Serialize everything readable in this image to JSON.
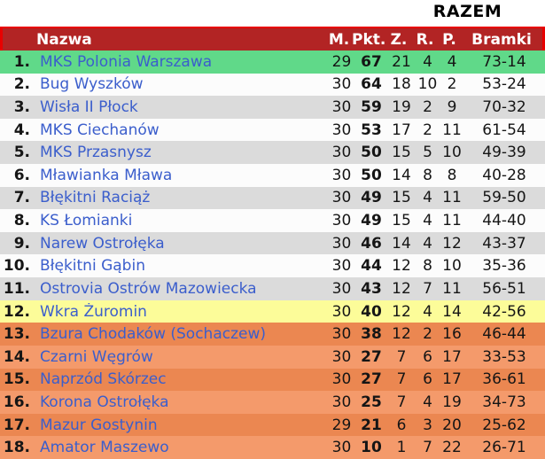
{
  "title": {
    "razem_label": "RAZEM"
  },
  "header": {
    "nazwa": "Nazwa",
    "m": "M.",
    "pkt": "Pkt.",
    "z": "Z.",
    "r": "R.",
    "p": "P.",
    "bramki": "Bramki"
  },
  "colors": {
    "header_bg": "#B22424",
    "header_accent": "#E80000",
    "header_text": "#FFFFFF",
    "team_link": "#3B5ECC",
    "number_text": "#151515",
    "zones": {
      "promotion_green": "#60D989",
      "plain_white": "#FCFCFC",
      "plain_gray": "#DBDBDB",
      "playoff_yellow": "#FCFC99",
      "relegation_orange_dark": "#EB8751",
      "relegation_orange_light": "#F49A6B"
    }
  },
  "rows": [
    {
      "pos": "1.",
      "name": "MKS Polonia Warszawa",
      "m": "29",
      "pkt": "67",
      "z": "21",
      "r": "4",
      "p": "4",
      "bramki": "73-14",
      "zone": "promotion_green"
    },
    {
      "pos": "2.",
      "name": "Bug Wyszków",
      "m": "30",
      "pkt": "64",
      "z": "18",
      "r": "10",
      "p": "2",
      "bramki": "53-24",
      "zone": "plain_white"
    },
    {
      "pos": "3.",
      "name": "Wisła II Płock",
      "m": "30",
      "pkt": "59",
      "z": "19",
      "r": "2",
      "p": "9",
      "bramki": "70-32",
      "zone": "plain_gray"
    },
    {
      "pos": "4.",
      "name": "MKS Ciechanów",
      "m": "30",
      "pkt": "53",
      "z": "17",
      "r": "2",
      "p": "11",
      "bramki": "61-54",
      "zone": "plain_white"
    },
    {
      "pos": "5.",
      "name": "MKS Przasnysz",
      "m": "30",
      "pkt": "50",
      "z": "15",
      "r": "5",
      "p": "10",
      "bramki": "49-39",
      "zone": "plain_gray"
    },
    {
      "pos": "6.",
      "name": "Mławianka Mława",
      "m": "30",
      "pkt": "50",
      "z": "14",
      "r": "8",
      "p": "8",
      "bramki": "40-28",
      "zone": "plain_white"
    },
    {
      "pos": "7.",
      "name": "Błękitni Raciąż",
      "m": "30",
      "pkt": "49",
      "z": "15",
      "r": "4",
      "p": "11",
      "bramki": "59-50",
      "zone": "plain_gray"
    },
    {
      "pos": "8.",
      "name": "KS Łomianki",
      "m": "30",
      "pkt": "49",
      "z": "15",
      "r": "4",
      "p": "11",
      "bramki": "44-40",
      "zone": "plain_white"
    },
    {
      "pos": "9.",
      "name": "Narew Ostrołęka",
      "m": "30",
      "pkt": "46",
      "z": "14",
      "r": "4",
      "p": "12",
      "bramki": "43-37",
      "zone": "plain_gray"
    },
    {
      "pos": "10.",
      "name": "Błękitni Gąbin",
      "m": "30",
      "pkt": "44",
      "z": "12",
      "r": "8",
      "p": "10",
      "bramki": "35-36",
      "zone": "plain_white"
    },
    {
      "pos": "11.",
      "name": "Ostrovia Ostrów Mazowiecka",
      "m": "30",
      "pkt": "43",
      "z": "12",
      "r": "7",
      "p": "11",
      "bramki": "56-51",
      "zone": "plain_gray"
    },
    {
      "pos": "12.",
      "name": "Wkra Żuromin",
      "m": "30",
      "pkt": "40",
      "z": "12",
      "r": "4",
      "p": "14",
      "bramki": "42-56",
      "zone": "playoff_yellow"
    },
    {
      "pos": "13.",
      "name": "Bzura Chodaków (Sochaczew)",
      "m": "30",
      "pkt": "38",
      "z": "12",
      "r": "2",
      "p": "16",
      "bramki": "46-44",
      "zone": "relegation_orange_dark"
    },
    {
      "pos": "14.",
      "name": "Czarni Węgrów",
      "m": "30",
      "pkt": "27",
      "z": "7",
      "r": "6",
      "p": "17",
      "bramki": "33-53",
      "zone": "relegation_orange_light"
    },
    {
      "pos": "15.",
      "name": "Naprzód Skórzec",
      "m": "30",
      "pkt": "27",
      "z": "7",
      "r": "6",
      "p": "17",
      "bramki": "36-61",
      "zone": "relegation_orange_dark"
    },
    {
      "pos": "16.",
      "name": "Korona Ostrołęka",
      "m": "30",
      "pkt": "25",
      "z": "7",
      "r": "4",
      "p": "19",
      "bramki": "34-73",
      "zone": "relegation_orange_light"
    },
    {
      "pos": "17.",
      "name": "Mazur Gostynin",
      "m": "29",
      "pkt": "21",
      "z": "6",
      "r": "3",
      "p": "20",
      "bramki": "25-62",
      "zone": "relegation_orange_dark"
    },
    {
      "pos": "18.",
      "name": "Amator Maszewo",
      "m": "30",
      "pkt": "10",
      "z": "1",
      "r": "7",
      "p": "22",
      "bramki": "26-71",
      "zone": "relegation_orange_light"
    }
  ]
}
